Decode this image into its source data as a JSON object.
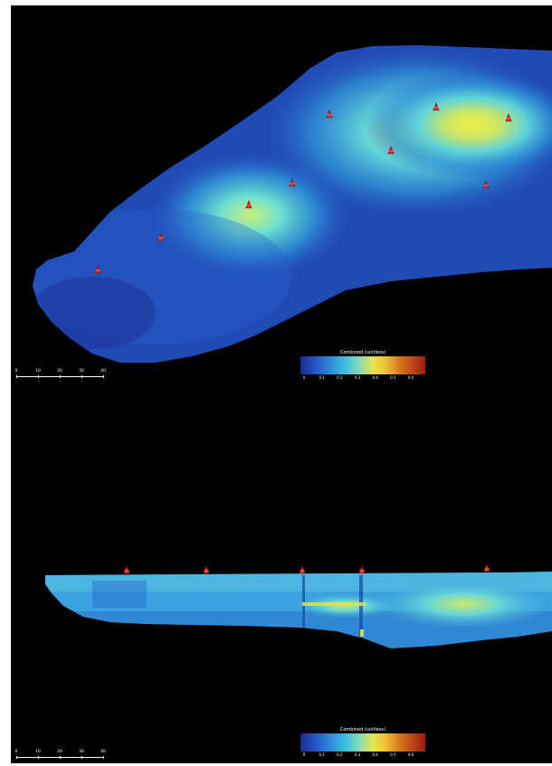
{
  "plan_view": {
    "legend": {
      "title": "Combined (unitless)",
      "ticks": [
        "0",
        "0.1",
        "0.2",
        "0.3",
        "0.4",
        "0.5",
        "0.6"
      ]
    },
    "scale_bar": {
      "ticks": [
        "0",
        "10",
        "20",
        "30",
        "40"
      ]
    },
    "marker_count": 9
  },
  "section_view": {
    "legend": {
      "title": "Combined (unitless)",
      "ticks": [
        "0",
        "0.1",
        "0.2",
        "0.3",
        "0.4",
        "0.5",
        "0.6"
      ]
    },
    "scale_bar": {
      "ticks": [
        "0",
        "10",
        "20",
        "30",
        "40"
      ]
    },
    "marker_count": 5
  },
  "colors": {
    "background": "#000000",
    "low": "#1b2a8c",
    "mid": "#3fc4e0",
    "high": "#e6e64a",
    "max": "#9c1b12",
    "marker": "#d8262a"
  }
}
